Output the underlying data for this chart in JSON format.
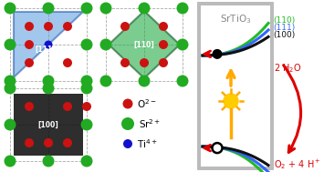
{
  "bg_color": "#ffffff",
  "panel_border_color": "#cccccc",
  "panel_title": "SrTiO$_3$",
  "panel_title_color": "#888888",
  "curve_colors": [
    "#22bb22",
    "#3366ff",
    "#111111"
  ],
  "curve_labels": [
    "(110)",
    "(111)",
    "(100)"
  ],
  "curve_label_colors": [
    "#22bb22",
    "#3366ff",
    "#111111"
  ],
  "sun_color": "#ffcc00",
  "sun_ray_color": "#ffaa00",
  "arrow_red": "#dd0000",
  "arrow_orange": "#ffaa00",
  "label_2H2O": "2 H$_2$O",
  "label_O2": "O$_2$ + 4 H$^+$",
  "r_Sr": 6.5,
  "r_O": 5.0,
  "r_Ti": 4.5,
  "col_Sr": "#22aa22",
  "col_O": "#cc1111",
  "col_Ti": "#1111cc",
  "legend_labels": [
    "O$^{2-}$",
    "Sr$^{2+}$",
    "Ti$^{4+}$"
  ],
  "legend_r": [
    5.5,
    7.0,
    5.0
  ],
  "legend_colors": [
    "#cc1111",
    "#22aa22",
    "#1111cc"
  ]
}
